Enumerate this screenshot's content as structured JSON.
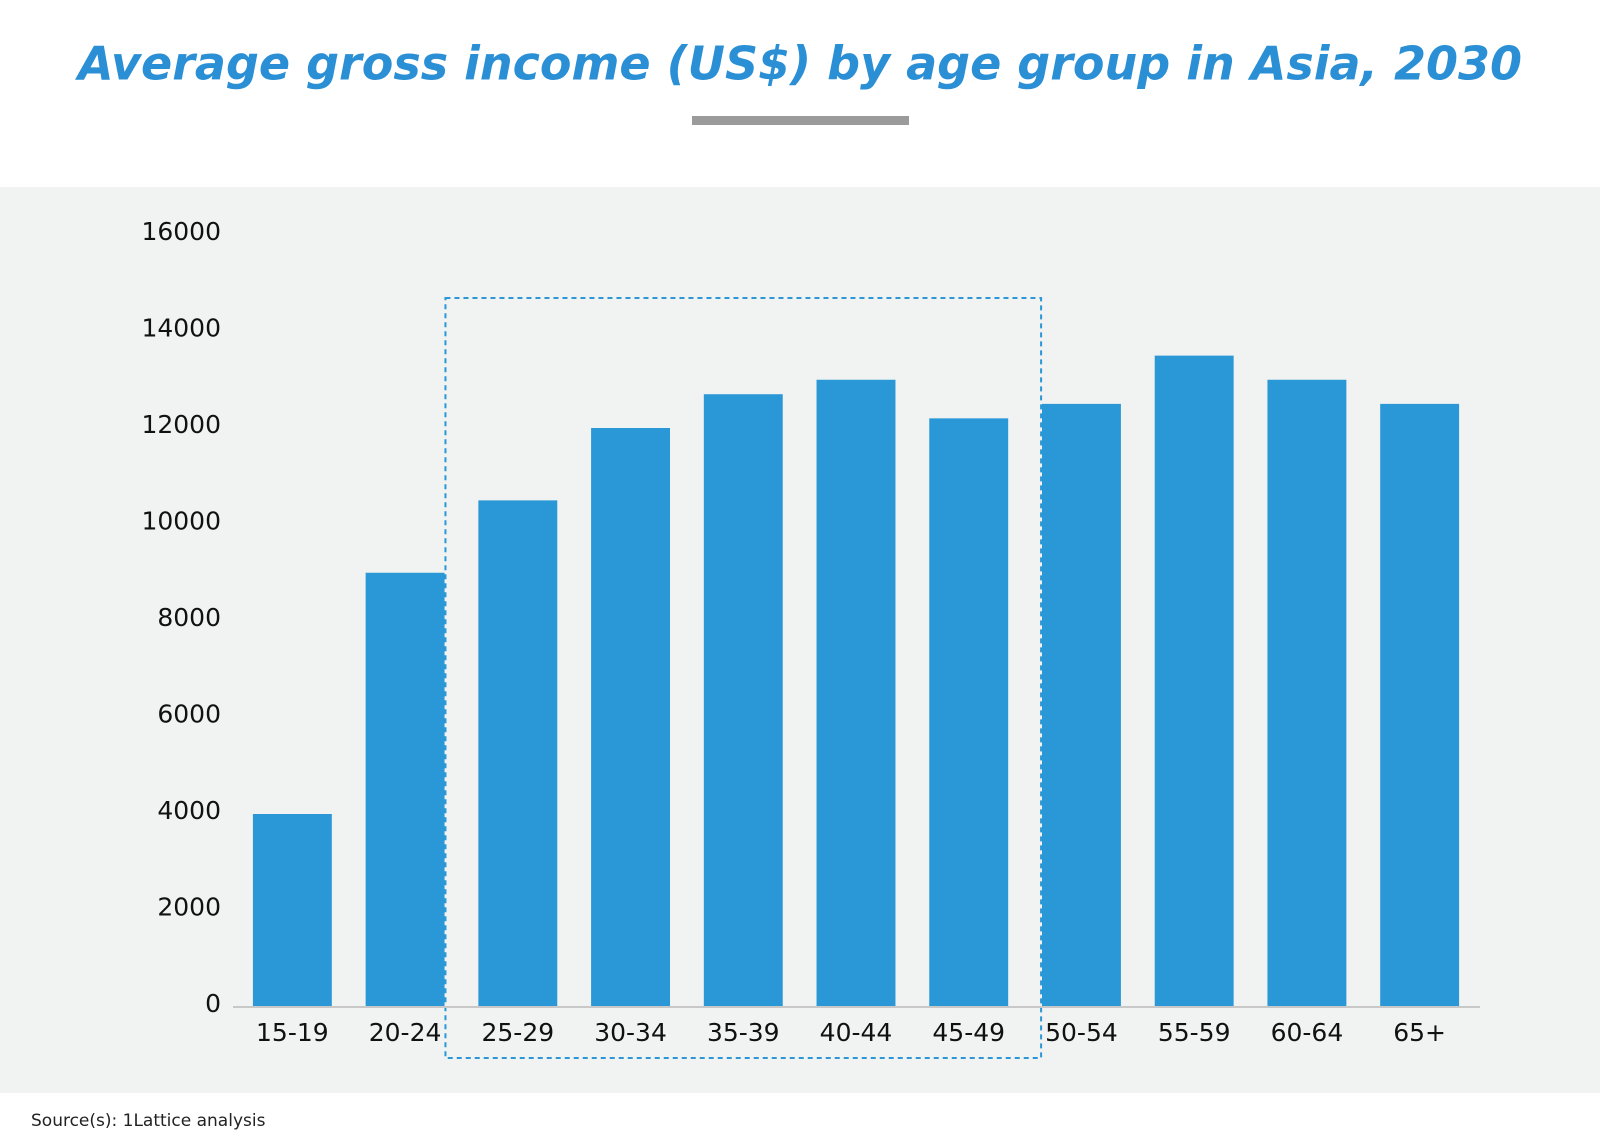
{
  "chart_data": {
    "type": "bar",
    "title": "Average gross income (US$) by age group in Asia, 2030",
    "categories": [
      "15-19",
      "20-24",
      "25-29",
      "30-34",
      "35-39",
      "40-44",
      "45-49",
      "50-54",
      "55-59",
      "60-64",
      "65+"
    ],
    "values": [
      4000,
      9000,
      10500,
      12000,
      12700,
      13000,
      12200,
      12500,
      13500,
      13000,
      12500
    ],
    "color": "#2a97d6",
    "ylim": [
      0,
      16000
    ],
    "yticks": [
      0,
      2000,
      4000,
      6000,
      8000,
      10000,
      12000,
      14000,
      16000
    ],
    "grid": false,
    "source": "Source(s): 1Lattice analysis"
  }
}
